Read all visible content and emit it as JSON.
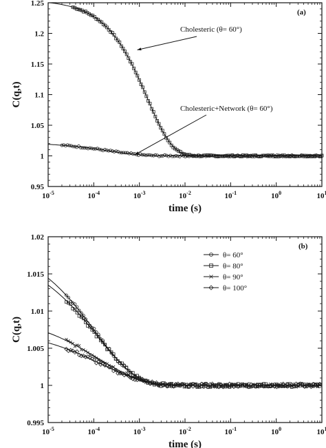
{
  "chart_data": [
    {
      "type": "scatter",
      "panel_label": "(a)",
      "xlabel": "time  (s)",
      "ylabel": "C(q,t)",
      "xscale": "log",
      "xlim": [
        1e-05,
        10
      ],
      "ylim": [
        0.95,
        1.25
      ],
      "x_ticks": [
        1e-05,
        0.0001,
        0.001,
        0.01,
        0.1,
        1,
        10
      ],
      "x_tick_labels": [
        {
          "base": "10",
          "exp": "-5"
        },
        {
          "base": "10",
          "exp": "-4"
        },
        {
          "base": "10",
          "exp": "-3"
        },
        {
          "base": "10",
          "exp": "-2"
        },
        {
          "base": "10",
          "exp": "-1"
        },
        {
          "base": "10",
          "exp": "0"
        },
        {
          "base": "10",
          "exp": "1"
        }
      ],
      "y_ticks": [
        0.95,
        1,
        1.05,
        1.1,
        1.15,
        1.2,
        1.25
      ],
      "y_tick_labels": [
        "0.95",
        "1",
        "1.05",
        "1.1",
        "1.15",
        "1.2",
        "1.25"
      ],
      "grid": false,
      "series": [
        {
          "name": "Cholesteric (θ= 60°)",
          "marker": "square",
          "model": "stretched_exponential",
          "baseline": 1.0,
          "amplitude": 0.255,
          "tau": 0.0015,
          "beta": 0.8,
          "x_range": [
            3.5e-05,
            10
          ]
        },
        {
          "name": "Cholesteric+Network (θ= 60°)",
          "marker": "circle",
          "model": "stretched_exponential",
          "baseline": 1.0,
          "amplitude": 0.022,
          "tau": 0.00022,
          "beta": 0.6,
          "x_range": [
            2e-05,
            10
          ]
        }
      ],
      "annotations": [
        {
          "text": "Cholesteric (θ= 60°)",
          "target_x": 0.0009,
          "target_y": 1.173
        },
        {
          "text": "Cholesteric+Network (θ= 60°)",
          "target_x": 0.0008,
          "target_y": 1.002
        }
      ]
    },
    {
      "type": "scatter",
      "panel_label": "(b)",
      "xlabel": "time  (s)",
      "ylabel": "C(q,t)",
      "xscale": "log",
      "xlim": [
        1e-05,
        10
      ],
      "ylim": [
        0.995,
        1.02
      ],
      "x_ticks": [
        1e-05,
        0.0001,
        0.001,
        0.01,
        0.1,
        1,
        10
      ],
      "x_tick_labels": [
        {
          "base": "10",
          "exp": "-5"
        },
        {
          "base": "10",
          "exp": "-4"
        },
        {
          "base": "10",
          "exp": "-3"
        },
        {
          "base": "10",
          "exp": "-2"
        },
        {
          "base": "10",
          "exp": "-1"
        },
        {
          "base": "10",
          "exp": "0"
        },
        {
          "base": "10",
          "exp": "1"
        }
      ],
      "y_ticks": [
        0.995,
        1,
        1.005,
        1.01,
        1.015,
        1.02
      ],
      "y_tick_labels": [
        "0.995",
        "1",
        "1.005",
        "1.01",
        "1.015",
        "1.02"
      ],
      "grid": false,
      "legend_position": "top-right",
      "series": [
        {
          "name": "θ= 60°",
          "marker": "circle",
          "model": "stretched_exponential",
          "baseline": 1.0,
          "amplitude": 0.0195,
          "tau": 0.00011,
          "beta": 0.5,
          "x_range": [
            2.5e-05,
            10
          ]
        },
        {
          "name": "θ= 80°",
          "marker": "square",
          "model": "stretched_exponential",
          "baseline": 1.0,
          "amplitude": 0.018,
          "tau": 0.00012,
          "beta": 0.5,
          "x_range": [
            2.5e-05,
            10
          ]
        },
        {
          "name": "θ= 90°",
          "marker": "x",
          "model": "stretched_exponential",
          "baseline": 1.0,
          "amplitude": 0.0097,
          "tau": 0.00013,
          "beta": 0.45,
          "x_range": [
            2.5e-05,
            10
          ]
        },
        {
          "name": "θ= 100°",
          "marker": "diamond",
          "model": "stretched_exponential",
          "baseline": 1.0,
          "amplitude": 0.0077,
          "tau": 0.00015,
          "beta": 0.45,
          "x_range": [
            2.5e-05,
            10
          ]
        }
      ]
    }
  ]
}
